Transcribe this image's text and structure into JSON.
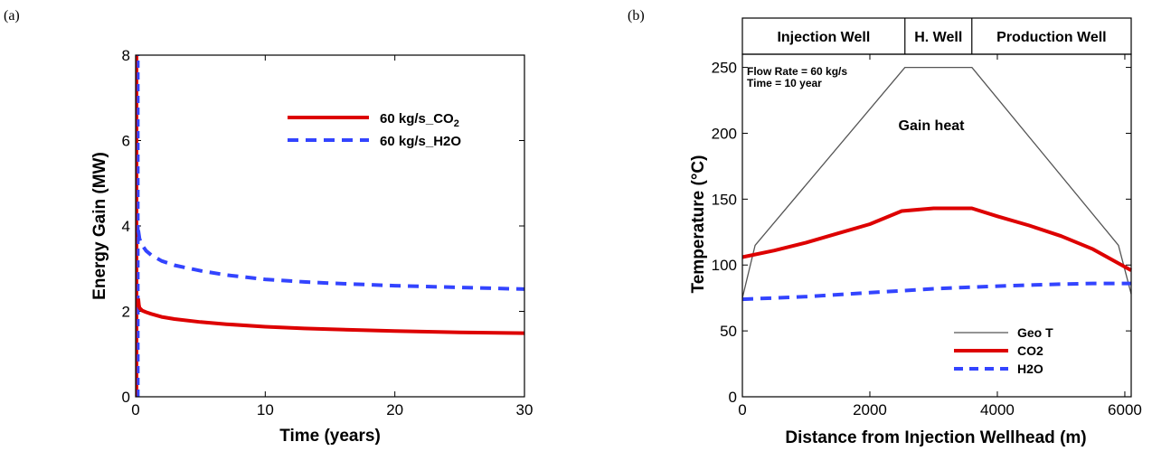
{
  "chart_data": [
    {
      "panel_label": "(a)",
      "type": "line",
      "xlabel": "Time (years)",
      "ylabel": "Energy Gain (MW)",
      "xlim": [
        0,
        30
      ],
      "ylim": [
        0,
        8
      ],
      "xticks": [
        0,
        10,
        20,
        30
      ],
      "yticks": [
        0,
        2,
        4,
        6,
        8
      ],
      "legend_position": "top-right",
      "series": [
        {
          "name": "60 kg/s_CO",
          "name_subscript": "2",
          "color": "#dd0000",
          "style": "solid",
          "x": [
            0.2,
            0.25,
            0.3,
            0.5,
            0.8,
            1.2,
            2,
            3,
            5,
            7,
            10,
            13,
            15,
            20,
            25,
            30
          ],
          "y": [
            2.3,
            2.15,
            2.08,
            2.02,
            1.98,
            1.94,
            1.87,
            1.82,
            1.75,
            1.7,
            1.64,
            1.6,
            1.58,
            1.54,
            1.51,
            1.49
          ]
        },
        {
          "name": "60 kg/s_H2O",
          "color": "#3344ff",
          "style": "dashed",
          "x": [
            0.2,
            0.3,
            0.5,
            0.8,
            1.2,
            2,
            3,
            5,
            7,
            10,
            13,
            15,
            20,
            25,
            30
          ],
          "y": [
            3.9,
            3.7,
            3.55,
            3.42,
            3.32,
            3.18,
            3.08,
            2.95,
            2.85,
            2.75,
            2.69,
            2.66,
            2.6,
            2.56,
            2.52
          ]
        }
      ],
      "spike_series": [
        {
          "color": "#dd0000",
          "x": 0.1,
          "y_from": 0,
          "y_to": 8
        },
        {
          "color": "#3344ff",
          "x": 0.2,
          "y_from": 0,
          "y_to": 8
        }
      ]
    },
    {
      "panel_label": "(b)",
      "type": "line",
      "xlabel": "Distance from Injection Wellhead (m)",
      "ylabel": "Temperature (°C)",
      "xlim": [
        0,
        6100
      ],
      "ylim": [
        0,
        260
      ],
      "xticks": [
        0,
        2000,
        4000,
        6000
      ],
      "yticks": [
        0,
        50,
        100,
        150,
        200,
        250
      ],
      "legend_position": "bottom-right",
      "sections": [
        {
          "label": "Injection Well",
          "x_from": 0,
          "x_to": 2550
        },
        {
          "label": "H. Well",
          "x_from": 2550,
          "x_to": 3600
        },
        {
          "label": "Production Well",
          "x_from": 3600,
          "x_to": 6100
        }
      ],
      "annotations": [
        {
          "text": "Flow Rate = 60 kg/s"
        },
        {
          "text": "Time = 10 year"
        },
        {
          "text": "Gain heat"
        }
      ],
      "series": [
        {
          "name": "Geo T",
          "color": "#555555",
          "style": "solid",
          "x": [
            0,
            200,
            2550,
            3600,
            5900,
            6100
          ],
          "y": [
            75,
            115,
            250,
            250,
            115,
            78
          ]
        },
        {
          "name": "CO2",
          "color": "#dd0000",
          "style": "solid",
          "x": [
            0,
            500,
            1000,
            1500,
            2000,
            2500,
            3000,
            3600,
            4000,
            4500,
            5000,
            5500,
            6100
          ],
          "y": [
            106,
            111,
            117,
            124,
            131,
            141,
            143,
            143,
            137,
            130,
            122,
            112,
            96
          ]
        },
        {
          "name": "H2O",
          "color": "#3344ff",
          "style": "dashed",
          "x": [
            0,
            500,
            1000,
            1500,
            2000,
            2500,
            3000,
            3500,
            4000,
            4500,
            5000,
            5500,
            6100
          ],
          "y": [
            74,
            75,
            76,
            77.5,
            79,
            80.5,
            82,
            83,
            84,
            84.8,
            85.5,
            86,
            86
          ]
        }
      ]
    }
  ]
}
